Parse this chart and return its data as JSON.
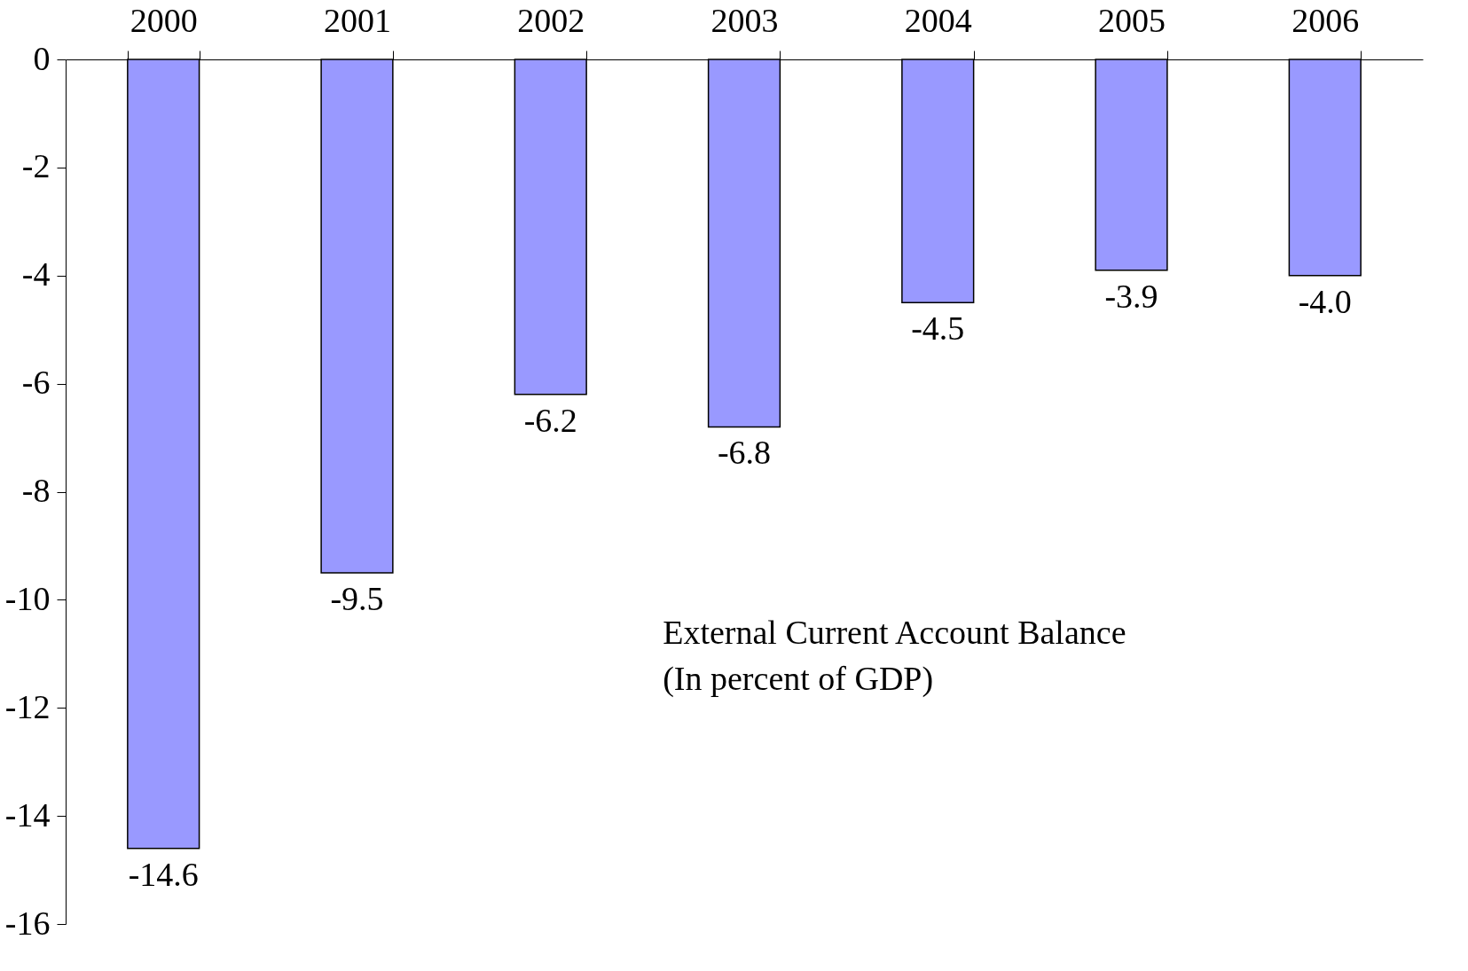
{
  "chart_data": {
    "type": "bar",
    "categories": [
      "2000",
      "2001",
      "2002",
      "2003",
      "2004",
      "2005",
      "2006"
    ],
    "values": [
      -14.6,
      -9.5,
      -6.2,
      -6.8,
      -4.5,
      -3.9,
      -4.0
    ],
    "value_labels": [
      "-14.6",
      "-9.5",
      "-6.2",
      "-6.8",
      "-4.5",
      "-3.9",
      "-4.0"
    ],
    "color": "#9999ff",
    "ylim": [
      -16,
      0
    ],
    "yticks": [
      0,
      -2,
      -4,
      -6,
      -8,
      -10,
      -12,
      -14,
      -16
    ],
    "grid": false,
    "annotations": [
      "External Current Account Balance",
      "(In percent of GDP)"
    ]
  }
}
